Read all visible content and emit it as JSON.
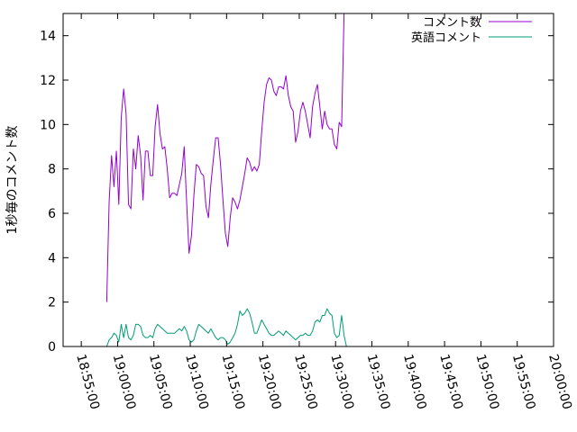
{
  "chart_data": {
    "type": "line",
    "ylabel": "1秒毎のコメント数",
    "xlabel": "",
    "ylim": [
      0,
      15
    ],
    "xlim": [
      "18:52:30",
      "20:00:00"
    ],
    "y_ticks": [
      "0",
      "2",
      "4",
      "6",
      "8",
      "10",
      "12",
      "14"
    ],
    "x_ticks": [
      "18:55:00",
      "19:00:00",
      "19:05:00",
      "19:10:00",
      "19:15:00",
      "19:20:00",
      "19:25:00",
      "19:30:00",
      "19:35:00",
      "19:40:00",
      "19:45:00",
      "19:50:00",
      "19:55:00",
      "20:00:00"
    ],
    "legend_position": "top-right",
    "grid": false,
    "series": [
      {
        "name": "コメント数",
        "color": "#9400d3",
        "points": [
          [
            "18:58:30",
            2.0
          ],
          [
            "18:58:50",
            6.5
          ],
          [
            "18:59:10",
            8.6
          ],
          [
            "18:59:30",
            7.2
          ],
          [
            "18:59:50",
            8.8
          ],
          [
            "19:00:10",
            6.4
          ],
          [
            "19:00:30",
            10.3
          ],
          [
            "19:00:50",
            11.6
          ],
          [
            "19:01:10",
            10.5
          ],
          [
            "19:01:30",
            6.4
          ],
          [
            "19:01:50",
            6.2
          ],
          [
            "19:02:10",
            8.9
          ],
          [
            "19:02:30",
            8.0
          ],
          [
            "19:02:50",
            9.5
          ],
          [
            "19:03:10",
            8.6
          ],
          [
            "19:03:30",
            6.6
          ],
          [
            "19:03:50",
            8.8
          ],
          [
            "19:04:10",
            8.8
          ],
          [
            "19:04:30",
            7.7
          ],
          [
            "19:04:50",
            7.7
          ],
          [
            "19:05:10",
            9.9
          ],
          [
            "19:05:30",
            10.9
          ],
          [
            "19:05:50",
            9.6
          ],
          [
            "19:06:10",
            8.9
          ],
          [
            "19:06:30",
            9.0
          ],
          [
            "19:06:50",
            8.0
          ],
          [
            "19:07:10",
            6.7
          ],
          [
            "19:07:30",
            6.9
          ],
          [
            "19:07:50",
            6.9
          ],
          [
            "19:08:10",
            6.8
          ],
          [
            "19:08:30",
            7.3
          ],
          [
            "19:08:50",
            7.8
          ],
          [
            "19:09:10",
            9.0
          ],
          [
            "19:09:30",
            6.5
          ],
          [
            "19:09:50",
            4.2
          ],
          [
            "19:10:10",
            5.0
          ],
          [
            "19:10:30",
            6.8
          ],
          [
            "19:10:50",
            8.2
          ],
          [
            "19:11:10",
            8.1
          ],
          [
            "19:11:30",
            7.8
          ],
          [
            "19:11:50",
            7.7
          ],
          [
            "19:12:10",
            6.3
          ],
          [
            "19:12:30",
            5.8
          ],
          [
            "19:12:50",
            7.3
          ],
          [
            "19:13:10",
            8.4
          ],
          [
            "19:13:30",
            9.4
          ],
          [
            "19:13:50",
            9.4
          ],
          [
            "19:14:10",
            8.2
          ],
          [
            "19:14:30",
            6.6
          ],
          [
            "19:14:50",
            5.1
          ],
          [
            "19:15:10",
            4.5
          ],
          [
            "19:15:30",
            5.8
          ],
          [
            "19:15:50",
            6.7
          ],
          [
            "19:16:10",
            6.5
          ],
          [
            "19:16:30",
            6.2
          ],
          [
            "19:16:50",
            6.6
          ],
          [
            "19:17:10",
            7.2
          ],
          [
            "19:17:30",
            7.8
          ],
          [
            "19:17:50",
            8.5
          ],
          [
            "19:18:10",
            8.3
          ],
          [
            "19:18:30",
            7.9
          ],
          [
            "19:18:50",
            8.1
          ],
          [
            "19:19:10",
            7.9
          ],
          [
            "19:19:30",
            8.2
          ],
          [
            "19:19:50",
            9.7
          ],
          [
            "19:20:10",
            11.0
          ],
          [
            "19:20:30",
            11.8
          ],
          [
            "19:20:50",
            12.1
          ],
          [
            "19:21:10",
            12.0
          ],
          [
            "19:21:30",
            11.5
          ],
          [
            "19:21:50",
            11.3
          ],
          [
            "19:22:10",
            11.7
          ],
          [
            "19:22:30",
            11.7
          ],
          [
            "19:22:50",
            11.6
          ],
          [
            "19:23:10",
            12.2
          ],
          [
            "19:23:30",
            11.3
          ],
          [
            "19:23:50",
            10.8
          ],
          [
            "19:24:10",
            10.6
          ],
          [
            "19:24:30",
            9.2
          ],
          [
            "19:24:50",
            9.7
          ],
          [
            "19:25:10",
            10.6
          ],
          [
            "19:25:30",
            11.0
          ],
          [
            "19:25:50",
            10.6
          ],
          [
            "19:26:10",
            10.0
          ],
          [
            "19:26:30",
            9.4
          ],
          [
            "19:26:50",
            10.8
          ],
          [
            "19:27:10",
            11.4
          ],
          [
            "19:27:30",
            11.8
          ],
          [
            "19:27:50",
            10.8
          ],
          [
            "19:28:10",
            9.8
          ],
          [
            "19:28:30",
            10.6
          ],
          [
            "19:28:50",
            10.0
          ],
          [
            "19:29:10",
            9.8
          ],
          [
            "19:29:30",
            9.8
          ],
          [
            "19:29:50",
            9.1
          ],
          [
            "19:30:10",
            8.9
          ],
          [
            "19:30:30",
            10.1
          ],
          [
            "19:30:50",
            9.9
          ],
          [
            "19:31:10",
            15.0
          ]
        ]
      },
      {
        "name": "英語コメント",
        "color": "#009e73",
        "points": [
          [
            "18:58:30",
            0.0
          ],
          [
            "18:58:50",
            0.3
          ],
          [
            "18:59:10",
            0.4
          ],
          [
            "18:59:30",
            0.6
          ],
          [
            "18:59:50",
            0.5
          ],
          [
            "19:00:10",
            0.2
          ],
          [
            "19:00:30",
            1.0
          ],
          [
            "19:00:50",
            0.4
          ],
          [
            "19:01:10",
            1.0
          ],
          [
            "19:01:30",
            0.4
          ],
          [
            "19:01:50",
            0.3
          ],
          [
            "19:02:10",
            0.5
          ],
          [
            "19:02:30",
            1.0
          ],
          [
            "19:02:50",
            1.0
          ],
          [
            "19:03:10",
            0.9
          ],
          [
            "19:03:30",
            0.5
          ],
          [
            "19:03:50",
            0.4
          ],
          [
            "19:04:10",
            0.4
          ],
          [
            "19:04:30",
            0.5
          ],
          [
            "19:04:50",
            0.4
          ],
          [
            "19:05:10",
            0.8
          ],
          [
            "19:05:30",
            1.0
          ],
          [
            "19:05:50",
            0.9
          ],
          [
            "19:06:10",
            0.8
          ],
          [
            "19:06:30",
            0.7
          ],
          [
            "19:06:50",
            0.6
          ],
          [
            "19:07:10",
            0.6
          ],
          [
            "19:07:30",
            0.6
          ],
          [
            "19:07:50",
            0.6
          ],
          [
            "19:08:10",
            0.7
          ],
          [
            "19:08:30",
            0.8
          ],
          [
            "19:08:50",
            0.7
          ],
          [
            "19:09:10",
            0.9
          ],
          [
            "19:09:30",
            0.7
          ],
          [
            "19:09:50",
            0.3
          ],
          [
            "19:10:10",
            0.2
          ],
          [
            "19:10:30",
            0.3
          ],
          [
            "19:10:50",
            0.7
          ],
          [
            "19:11:10",
            1.0
          ],
          [
            "19:11:30",
            0.9
          ],
          [
            "19:11:50",
            0.8
          ],
          [
            "19:12:10",
            0.7
          ],
          [
            "19:12:30",
            0.6
          ],
          [
            "19:12:50",
            0.8
          ],
          [
            "19:13:10",
            0.6
          ],
          [
            "19:13:30",
            0.4
          ],
          [
            "19:13:50",
            0.3
          ],
          [
            "19:14:10",
            0.4
          ],
          [
            "19:14:30",
            0.4
          ],
          [
            "19:14:50",
            0.3
          ],
          [
            "19:15:10",
            0.1
          ],
          [
            "19:15:30",
            0.2
          ],
          [
            "19:15:50",
            0.4
          ],
          [
            "19:16:10",
            0.6
          ],
          [
            "19:16:30",
            1.0
          ],
          [
            "19:16:50",
            1.6
          ],
          [
            "19:17:10",
            1.4
          ],
          [
            "19:17:30",
            1.5
          ],
          [
            "19:17:50",
            1.7
          ],
          [
            "19:18:10",
            1.5
          ],
          [
            "19:18:30",
            1.1
          ],
          [
            "19:18:50",
            0.6
          ],
          [
            "19:19:10",
            0.6
          ],
          [
            "19:19:30",
            0.9
          ],
          [
            "19:19:50",
            1.2
          ],
          [
            "19:20:10",
            1.0
          ],
          [
            "19:20:30",
            0.8
          ],
          [
            "19:20:50",
            0.6
          ],
          [
            "19:21:10",
            0.5
          ],
          [
            "19:21:30",
            0.5
          ],
          [
            "19:21:50",
            0.6
          ],
          [
            "19:22:10",
            0.7
          ],
          [
            "19:22:30",
            0.6
          ],
          [
            "19:22:50",
            0.5
          ],
          [
            "19:23:10",
            0.7
          ],
          [
            "19:23:30",
            0.6
          ],
          [
            "19:23:50",
            0.5
          ],
          [
            "19:24:10",
            0.4
          ],
          [
            "19:24:30",
            0.3
          ],
          [
            "19:24:50",
            0.4
          ],
          [
            "19:25:10",
            0.5
          ],
          [
            "19:25:30",
            0.5
          ],
          [
            "19:25:50",
            0.6
          ],
          [
            "19:26:10",
            0.5
          ],
          [
            "19:26:30",
            0.5
          ],
          [
            "19:26:50",
            0.7
          ],
          [
            "19:27:10",
            1.1
          ],
          [
            "19:27:30",
            1.2
          ],
          [
            "19:27:50",
            1.1
          ],
          [
            "19:28:10",
            1.4
          ],
          [
            "19:28:30",
            1.4
          ],
          [
            "19:28:50",
            1.7
          ],
          [
            "19:29:10",
            1.5
          ],
          [
            "19:29:30",
            1.4
          ],
          [
            "19:29:50",
            0.6
          ],
          [
            "19:30:10",
            0.4
          ],
          [
            "19:30:30",
            0.5
          ],
          [
            "19:30:50",
            1.4
          ],
          [
            "19:31:10",
            0.5
          ],
          [
            "19:31:30",
            0.0
          ]
        ]
      }
    ]
  }
}
